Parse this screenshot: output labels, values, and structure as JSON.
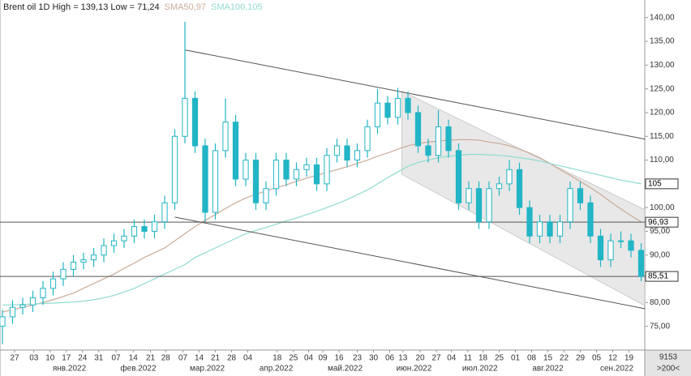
{
  "chart_data": {
    "type": "candlestick",
    "title": "Brent oil 1D High = 139,13 Low = 71,24",
    "color": "#22b5c5",
    "open": [
      75,
      77,
      79,
      79.5,
      81,
      83,
      85,
      87,
      88.5,
      89,
      90,
      92,
      93,
      94,
      96,
      95,
      97,
      101,
      115,
      123,
      113,
      99,
      112,
      118,
      106,
      110,
      101,
      104,
      110,
      106,
      108,
      109,
      105,
      111,
      113,
      110,
      112,
      117,
      122,
      119,
      123,
      120,
      113,
      111,
      117,
      112,
      101,
      104,
      97,
      104,
      105,
      108,
      100,
      94,
      97,
      94,
      97,
      104,
      101,
      94,
      89,
      93,
      93,
      91
    ],
    "high": [
      78.5,
      80.5,
      81,
      82.5,
      84.5,
      86.5,
      88.5,
      90,
      90.5,
      91.5,
      93.5,
      94.5,
      95.5,
      97.5,
      97.5,
      98.5,
      102.5,
      116.5,
      139.13,
      124.5,
      114.5,
      113.5,
      123,
      119.5,
      111.5,
      111.5,
      105.5,
      111.5,
      111.5,
      109.5,
      110.5,
      110.5,
      112.5,
      114.5,
      114.5,
      113.5,
      118.5,
      125,
      123.5,
      125.2,
      124.5,
      121.5,
      114.5,
      120.5,
      118.5,
      113.5,
      105.5,
      105.5,
      105.5,
      106.5,
      110,
      109.5,
      101.5,
      98.5,
      98.5,
      98.5,
      105.5,
      105.5,
      102.5,
      95.5,
      94.5,
      95,
      94.5,
      92.5
    ],
    "low": [
      71.24,
      75.5,
      77.5,
      78,
      79.5,
      81.5,
      83.5,
      85.5,
      87,
      87.5,
      88.5,
      90.5,
      91.5,
      92.5,
      93.5,
      93.5,
      95.5,
      99.5,
      113.5,
      111.5,
      97,
      97.5,
      110.5,
      104.5,
      104.5,
      99.5,
      99.5,
      102.5,
      104.5,
      104.5,
      106.5,
      103.5,
      103.5,
      109.5,
      108.5,
      108.5,
      110.5,
      115.5,
      117.5,
      117.5,
      118.5,
      111.5,
      109.5,
      109.5,
      110.5,
      99.5,
      99.5,
      95.5,
      95.5,
      102.5,
      103.5,
      98.5,
      92.5,
      92.5,
      92.5,
      92.5,
      95.5,
      99.5,
      92.5,
      87.5,
      87.5,
      91.5,
      89.5,
      84.5
    ],
    "close": [
      77,
      79,
      79.5,
      81,
      83,
      85,
      87,
      88.5,
      89,
      90,
      92,
      93,
      94,
      96,
      95,
      97,
      101,
      115,
      123,
      113,
      99,
      112,
      118,
      106,
      110,
      101,
      104,
      110,
      106,
      108,
      109,
      105,
      111,
      113,
      110,
      112,
      117,
      122,
      119,
      123,
      120,
      113,
      111,
      117,
      112,
      101,
      104,
      97,
      104,
      105,
      108,
      100,
      94,
      97,
      94,
      97,
      104,
      101,
      94,
      89,
      93,
      93,
      91,
      85.51
    ],
    "series": [
      {
        "name": "SMA50,97",
        "color": "#c9ab98",
        "values": [
          78,
          78.5,
          79,
          79.5,
          80,
          80.6,
          81.3,
          82,
          83,
          84,
          85,
          86,
          87.2,
          88.3,
          89.5,
          90.5,
          91.5,
          93,
          94.5,
          96,
          97.3,
          98.5,
          99.8,
          101,
          102,
          102.8,
          103.5,
          104.2,
          104.8,
          105.5,
          106.2,
          106.8,
          107.4,
          108,
          108.6,
          109.3,
          110,
          110.8,
          111.5,
          112.3,
          113,
          113.5,
          113.8,
          114,
          114.2,
          114.3,
          114.3,
          114.2,
          113.8,
          113.5,
          113,
          112.3,
          111.5,
          110.5,
          109.3,
          108,
          106.8,
          105.5,
          104.2,
          102.8,
          101.2,
          99.7,
          98.3,
          97
        ]
      },
      {
        "name": "SMA100,105",
        "color": "#8fdccf",
        "values": [
          79.5,
          79.5,
          79.6,
          79.7,
          79.8,
          79.9,
          80,
          80.1,
          80.3,
          80.6,
          81,
          81.5,
          82.2,
          83,
          84,
          85,
          86,
          87,
          88,
          89.5,
          90.5,
          91.5,
          92.5,
          93.5,
          94.5,
          95.2,
          95.8,
          96.5,
          97.2,
          97.8,
          98.5,
          99.2,
          100,
          100.8,
          101.7,
          102.7,
          103.7,
          105,
          106.3,
          107.5,
          108.7,
          109.5,
          110,
          110.5,
          110.8,
          111,
          111.2,
          111.2,
          111.1,
          111,
          110.8,
          110.5,
          110.2,
          109.8,
          109.3,
          108.8,
          108.3,
          107.8,
          107.3,
          106.8,
          106.3,
          105.8,
          105.4,
          105
        ]
      }
    ],
    "lines": [
      {
        "x": [
          18,
          63.4
        ],
        "y": [
          133.2,
          114.4
        ],
        "color": "#555555"
      },
      {
        "x": [
          17,
          63.4
        ],
        "y": [
          98,
          78.7
        ],
        "color": "#555555"
      }
    ],
    "channel": {
      "x": [
        39.4,
        63.4
      ],
      "upper": [
        124.5,
        99.5
      ],
      "lower": [
        107,
        79.3
      ],
      "color": "#d9d9d9"
    },
    "hlines": [
      {
        "value": 96.93,
        "label": "96,93"
      },
      {
        "value": 85.51,
        "label": "85,51"
      }
    ],
    "price_labels": [
      {
        "value": 105,
        "label": "105"
      }
    ],
    "ylim": [
      70,
      142
    ],
    "yticks": [
      {
        "value": 75,
        "label": "75,00"
      },
      {
        "value": 80,
        "label": "80,00"
      },
      {
        "value": 85,
        "label": "85,00"
      },
      {
        "value": 90,
        "label": "90,00"
      },
      {
        "value": 95,
        "label": "95,00"
      },
      {
        "value": 100,
        "label": "100,00"
      },
      {
        "value": 105,
        "label": "105,00"
      },
      {
        "value": 110,
        "label": "110,00"
      },
      {
        "value": 115,
        "label": "115,00"
      },
      {
        "value": 120,
        "label": "120,00"
      },
      {
        "value": 125,
        "label": "125,00"
      },
      {
        "value": 130,
        "label": "130,00"
      },
      {
        "value": 135,
        "label": "135,00"
      },
      {
        "value": 140,
        "label": "140,00"
      }
    ],
    "xlim": [
      -0.24,
      63.36
    ],
    "xticks": [
      {
        "value": 1.2,
        "label": "27"
      },
      {
        "value": 3.1,
        "label": "03"
      },
      {
        "value": 4.7,
        "label": "10"
      },
      {
        "value": 6.3,
        "label": "17"
      },
      {
        "value": 7.9,
        "label": "24"
      },
      {
        "value": 9.5,
        "label": "31"
      },
      {
        "value": 11.2,
        "label": "07"
      },
      {
        "value": 12.9,
        "label": "14"
      },
      {
        "value": 14.6,
        "label": "21"
      },
      {
        "value": 16.1,
        "label": "28"
      },
      {
        "value": 17.8,
        "label": "07"
      },
      {
        "value": 19.4,
        "label": "14"
      },
      {
        "value": 21,
        "label": "21"
      },
      {
        "value": 22.6,
        "label": "28"
      },
      {
        "value": 24.2,
        "label": "04"
      },
      {
        "value": 27.1,
        "label": "18"
      },
      {
        "value": 28.7,
        "label": "25"
      },
      {
        "value": 30.2,
        "label": "04"
      },
      {
        "value": 31.6,
        "label": "09"
      },
      {
        "value": 33.2,
        "label": "16"
      },
      {
        "value": 35,
        "label": "23"
      },
      {
        "value": 36.6,
        "label": "30"
      },
      {
        "value": 38.2,
        "label": "06"
      },
      {
        "value": 39.5,
        "label": "13"
      },
      {
        "value": 41.2,
        "label": "20"
      },
      {
        "value": 42.8,
        "label": "27"
      },
      {
        "value": 44.3,
        "label": "04"
      },
      {
        "value": 45.9,
        "label": "11"
      },
      {
        "value": 47.4,
        "label": "18"
      },
      {
        "value": 49,
        "label": "25"
      },
      {
        "value": 50.6,
        "label": "01"
      },
      {
        "value": 52.2,
        "label": "08"
      },
      {
        "value": 53.8,
        "label": "15"
      },
      {
        "value": 55.4,
        "label": "22"
      },
      {
        "value": 57,
        "label": "29"
      },
      {
        "value": 58.6,
        "label": "05"
      },
      {
        "value": 60.2,
        "label": "12"
      },
      {
        "value": 61.8,
        "label": "19"
      }
    ],
    "month_ticks": [
      {
        "value": 6.6,
        "label": "янв.2022"
      },
      {
        "value": 13.4,
        "label": "фев.2022"
      },
      {
        "value": 20.2,
        "label": "мар.2022"
      },
      {
        "value": 27,
        "label": "апр.2022"
      },
      {
        "value": 33.8,
        "label": "май.2022"
      },
      {
        "value": 40.6,
        "label": "июн.2022"
      },
      {
        "value": 47.1,
        "label": "июл.2022"
      },
      {
        "value": 53.8,
        "label": "авг.2022"
      },
      {
        "value": 60.6,
        "label": "сен.2022"
      }
    ],
    "footer": [
      "9153",
      ">200<"
    ]
  }
}
